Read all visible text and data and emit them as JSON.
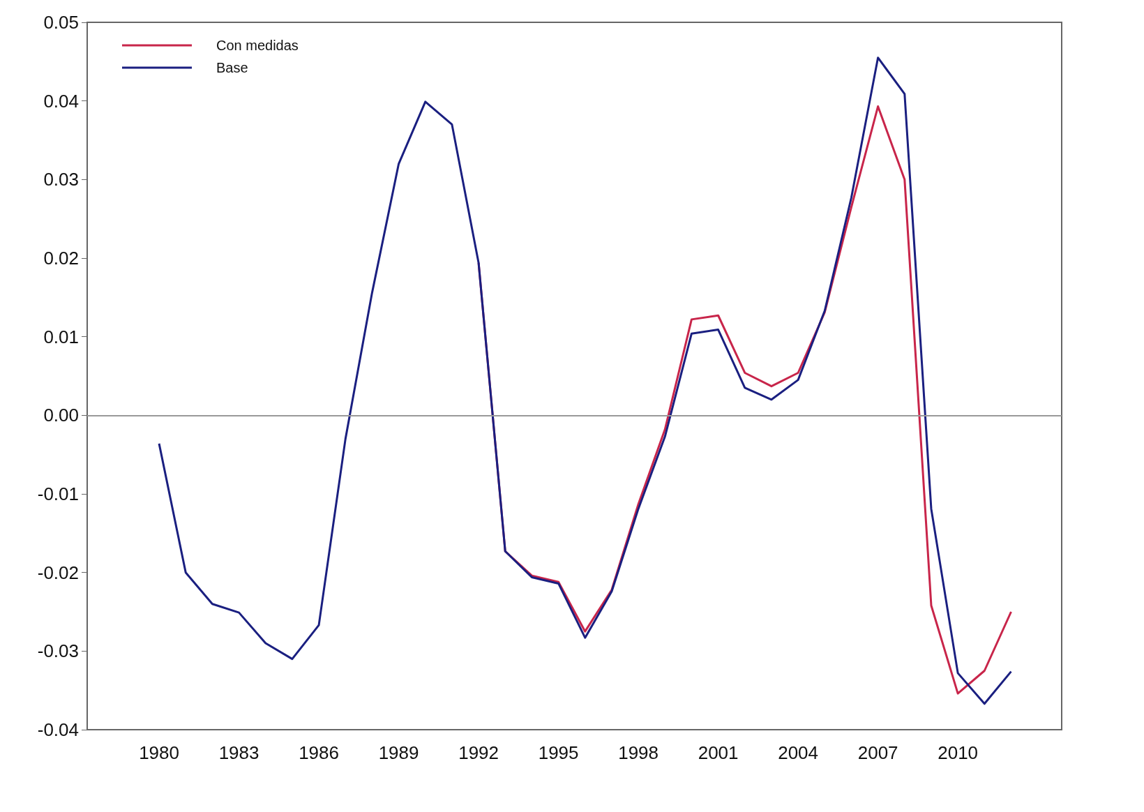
{
  "chart_data": {
    "type": "line",
    "x": [
      1980,
      1981,
      1982,
      1983,
      1984,
      1985,
      1986,
      1987,
      1988,
      1989,
      1990,
      1991,
      1992,
      1993,
      1994,
      1995,
      1996,
      1997,
      1998,
      1999,
      2000,
      2001,
      2002,
      2003,
      2004,
      2005,
      2006,
      2007,
      2008,
      2009,
      2010,
      2011,
      2012
    ],
    "series": [
      {
        "name": "Con medidas",
        "color": "#c8254a",
        "values": [
          null,
          null,
          null,
          null,
          null,
          null,
          null,
          null,
          null,
          null,
          null,
          null,
          0.0194,
          -0.0173,
          -0.0204,
          -0.0212,
          -0.0275,
          -0.0222,
          -0.0113,
          -0.0018,
          0.0122,
          0.0127,
          0.0054,
          0.0037,
          0.0054,
          0.0131,
          0.0265,
          0.0393,
          0.03,
          -0.0242,
          -0.0354,
          -0.0325,
          -0.025
        ]
      },
      {
        "name": "Base",
        "color": "#1a1f80",
        "values": [
          -0.0036,
          -0.02,
          -0.024,
          -0.0251,
          -0.029,
          -0.031,
          -0.0267,
          -0.003,
          0.0156,
          0.032,
          0.0399,
          0.037,
          0.0194,
          -0.0173,
          -0.0206,
          -0.0214,
          -0.0283,
          -0.0224,
          -0.0119,
          -0.0027,
          0.0104,
          0.0109,
          0.0035,
          0.002,
          0.0045,
          0.0133,
          0.0277,
          0.0455,
          0.0409,
          -0.0119,
          -0.0328,
          -0.0367,
          -0.0326
        ]
      }
    ],
    "xlim": [
      1977.3,
      2013.9
    ],
    "xticks": [
      1980,
      1983,
      1986,
      1989,
      1992,
      1995,
      1998,
      2001,
      2004,
      2007,
      2010
    ],
    "ylim": [
      -0.04,
      0.05
    ],
    "yticks": [
      {
        "value": -0.04,
        "label": "-0.04"
      },
      {
        "value": -0.03,
        "label": "-0.03"
      },
      {
        "value": -0.02,
        "label": "-0.02"
      },
      {
        "value": -0.01,
        "label": "-0.01"
      },
      {
        "value": 0,
        "label": "0.00"
      },
      {
        "value": 0.01,
        "label": "0.01"
      },
      {
        "value": 0.02,
        "label": "0.02"
      },
      {
        "value": 0.03,
        "label": "0.03"
      },
      {
        "value": 0.04,
        "label": "0.04"
      },
      {
        "value": 0.05,
        "label": "0.05"
      }
    ],
    "ref_lines": [
      {
        "axis": "y",
        "value": 0,
        "color": "#999999"
      }
    ],
    "grid": false,
    "legend": "top left",
    "marker": "none",
    "line_style": "solid"
  }
}
